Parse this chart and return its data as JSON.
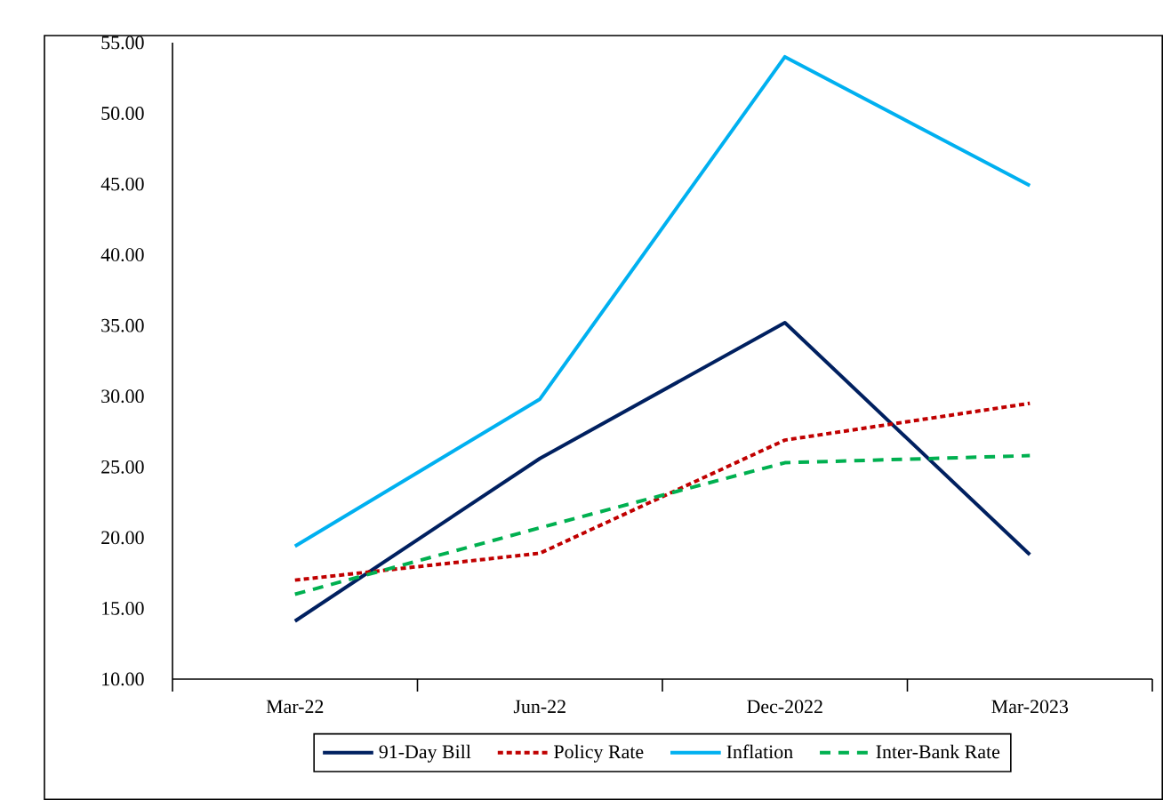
{
  "chart_data": {
    "type": "line",
    "categories": [
      "Mar-22",
      "Jun-22",
      "Dec-2022",
      "Mar-2023"
    ],
    "series": [
      {
        "name": "91-Day Bill",
        "color": "#002060",
        "line_style": "solid",
        "values": [
          14.1,
          25.6,
          35.2,
          18.8
        ]
      },
      {
        "name": "Policy Rate",
        "color": "#c00000",
        "line_style": "dotted",
        "values": [
          17.0,
          18.9,
          26.9,
          29.5
        ]
      },
      {
        "name": "Inflation",
        "color": "#00b0f0",
        "line_style": "solid",
        "values": [
          19.4,
          29.8,
          54.0,
          44.9
        ]
      },
      {
        "name": "Inter-Bank Rate",
        "color": "#00b050",
        "line_style": "dashed",
        "values": [
          16.0,
          20.7,
          25.3,
          25.8
        ]
      }
    ],
    "ylim": [
      10,
      55
    ],
    "yticks": [
      {
        "value": 10,
        "label": "10.00"
      },
      {
        "value": 15,
        "label": "15.00"
      },
      {
        "value": 20,
        "label": "20.00"
      },
      {
        "value": 25,
        "label": "25.00"
      },
      {
        "value": 30,
        "label": "30.00"
      },
      {
        "value": 35,
        "label": "35.00"
      },
      {
        "value": 40,
        "label": "40.00"
      },
      {
        "value": 45,
        "label": "45.00"
      },
      {
        "value": 50,
        "label": "50.00"
      },
      {
        "value": 55,
        "label": "55.00"
      }
    ],
    "grid": false,
    "legend": "bottom",
    "marker": "none"
  }
}
